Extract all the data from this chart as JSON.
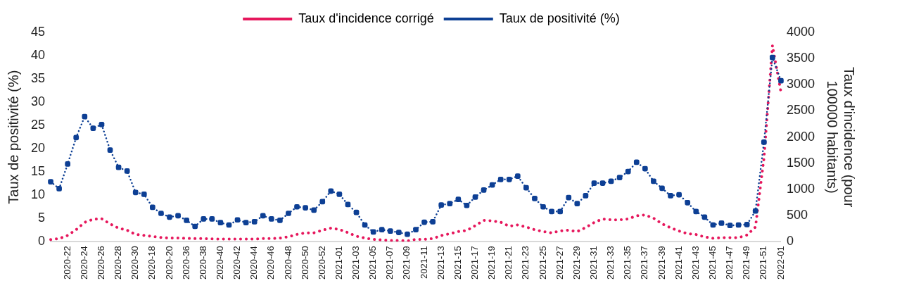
{
  "chart_data": {
    "type": "line",
    "ylabel": "Taux de positivité (%)",
    "y2label": "Taux d'incidence (pour 100000 habitants)",
    "categories": [
      null,
      null,
      "2020-22",
      null,
      "2020-24",
      null,
      "2020-26",
      null,
      "2020-28",
      null,
      "2020-30",
      null,
      "2020-18",
      null,
      "2020-20",
      null,
      "2020-36",
      null,
      "2020-38",
      null,
      "2020-40",
      null,
      "2020-42",
      null,
      "2020-44",
      null,
      "2020-46",
      null,
      "2020-48",
      null,
      "2020-50",
      null,
      "2020-52",
      null,
      "2021-01",
      null,
      "2021-03",
      null,
      "2021-05",
      null,
      "2021-07",
      null,
      "2021-09",
      null,
      "2021-11",
      null,
      "2021-13",
      null,
      "2021-15",
      null,
      "2021-17",
      null,
      "2021-19",
      null,
      "2021-21",
      null,
      "2021-23",
      null,
      "2021-25",
      null,
      "2021-27",
      null,
      "2021-29",
      null,
      "2021-31",
      null,
      "2021-33",
      null,
      "2021-35",
      null,
      "2021-37",
      null,
      "2021-39",
      null,
      "2021-41",
      null,
      "2021-43",
      null,
      "2021-45",
      null,
      "2021-47",
      null,
      "2021-49",
      null,
      "2021-51",
      null,
      "2022-01"
    ],
    "series": [
      {
        "name": "Taux d'incidence corrigé",
        "color": "#e6175c",
        "axis": "y2",
        "marker": "none",
        "line_style": "dotted",
        "values": [
          40,
          60,
          120,
          230,
          370,
          430,
          440,
          340,
          260,
          220,
          140,
          120,
          100,
          80,
          70,
          70,
          65,
          60,
          60,
          55,
          50,
          50,
          50,
          50,
          50,
          60,
          60,
          70,
          95,
          140,
          170,
          170,
          220,
          260,
          235,
          175,
          105,
          70,
          45,
          35,
          25,
          25,
          15,
          45,
          45,
          60,
          118,
          153,
          194,
          215,
          307,
          409,
          399,
          373,
          297,
          322,
          281,
          230,
          194,
          169,
          205,
          220,
          194,
          271,
          368,
          435,
          419,
          419,
          435,
          496,
          512,
          450,
          343,
          266,
          205,
          153,
          138,
          92,
          66,
          77,
          77,
          77,
          128,
          281,
          1600,
          3750,
          2860
        ]
      },
      {
        "name": "Taux de positivité (%)",
        "color": "#0d3f94",
        "axis": "y",
        "marker": "square",
        "line_style": "dotted",
        "values": [
          12.9,
          11.4,
          16.7,
          22.4,
          26.9,
          24.4,
          25.2,
          19.7,
          16.0,
          15.2,
          10.6,
          10.2,
          7.4,
          6.1,
          5.3,
          5.6,
          4.6,
          3.3,
          4.9,
          4.9,
          4.1,
          3.6,
          4.7,
          4.1,
          4.3,
          5.6,
          4.9,
          4.6,
          6.1,
          7.5,
          7.3,
          6.8,
          8.6,
          10.9,
          10.2,
          8.0,
          6.3,
          3.6,
          2.1,
          2.6,
          2.3,
          2.0,
          1.6,
          2.6,
          4.2,
          4.3,
          7.9,
          8.2,
          9.1,
          7.8,
          9.6,
          11.1,
          12.2,
          13.4,
          13.4,
          14.1,
          11.6,
          9.3,
          7.5,
          6.5,
          6.5,
          9.5,
          8.2,
          9.9,
          12.6,
          12.6,
          13.0,
          13.8,
          15.1,
          17.1,
          15.7,
          13.0,
          11.5,
          9.9,
          10.1,
          8.4,
          6.5,
          5.3,
          3.6,
          4.0,
          3.5,
          3.6,
          3.7,
          6.6,
          21.4,
          39.6,
          34.6
        ]
      }
    ],
    "ylim": [
      0,
      45
    ],
    "yticks": [
      0,
      5,
      10,
      15,
      20,
      25,
      30,
      35,
      40,
      45
    ],
    "y2lim": [
      0,
      4000
    ],
    "y2ticks": [
      0,
      500,
      1000,
      1500,
      2000,
      2500,
      3000,
      3500,
      4000
    ],
    "grid": false,
    "legend": "top"
  }
}
